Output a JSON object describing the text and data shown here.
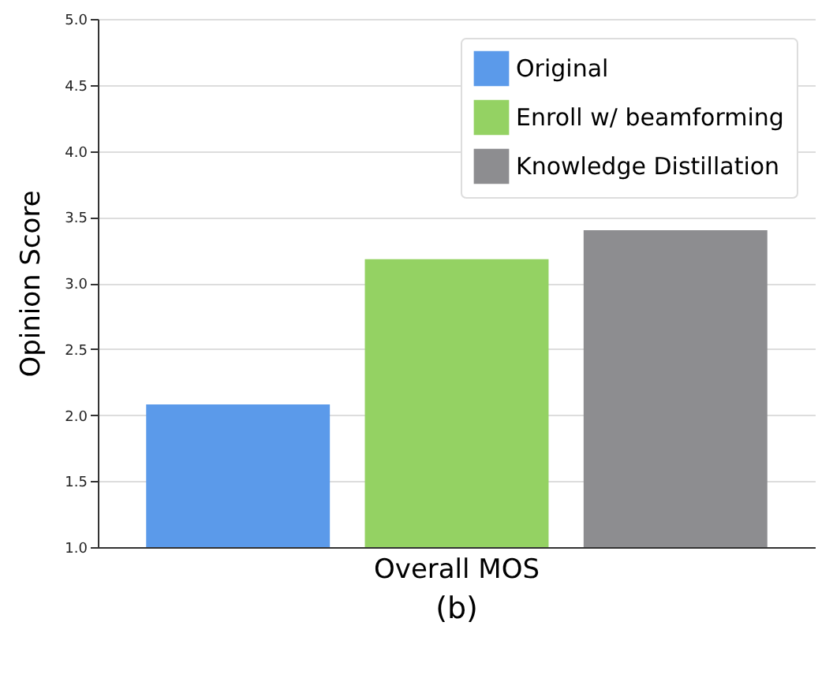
{
  "chart_data": {
    "type": "bar",
    "ylabel": "Opinion Score",
    "categories": [
      "Overall MOS"
    ],
    "series": [
      {
        "name": "Original",
        "color": "#5b9aea",
        "values": [
          2.08
        ]
      },
      {
        "name": "Enroll w/ beamforming",
        "color": "#94d263",
        "values": [
          3.18
        ]
      },
      {
        "name": "Knowledge Distillation",
        "color": "#8d8d90",
        "values": [
          3.4
        ]
      }
    ],
    "ylim": [
      1.0,
      5.0
    ],
    "yticks": [
      {
        "value": 1.0,
        "label": "1.0"
      },
      {
        "value": 1.5,
        "label": "1.5"
      },
      {
        "value": 2.0,
        "label": "2.0"
      },
      {
        "value": 2.5,
        "label": "2.5"
      },
      {
        "value": 3.0,
        "label": "3.0"
      },
      {
        "value": 3.5,
        "label": "3.5"
      },
      {
        "value": 4.0,
        "label": "4.0"
      },
      {
        "value": 4.5,
        "label": "4.5"
      },
      {
        "value": 5.0,
        "label": "5.0"
      }
    ],
    "grid": "y",
    "legend": "top right",
    "annotations": [
      "(b)"
    ]
  }
}
